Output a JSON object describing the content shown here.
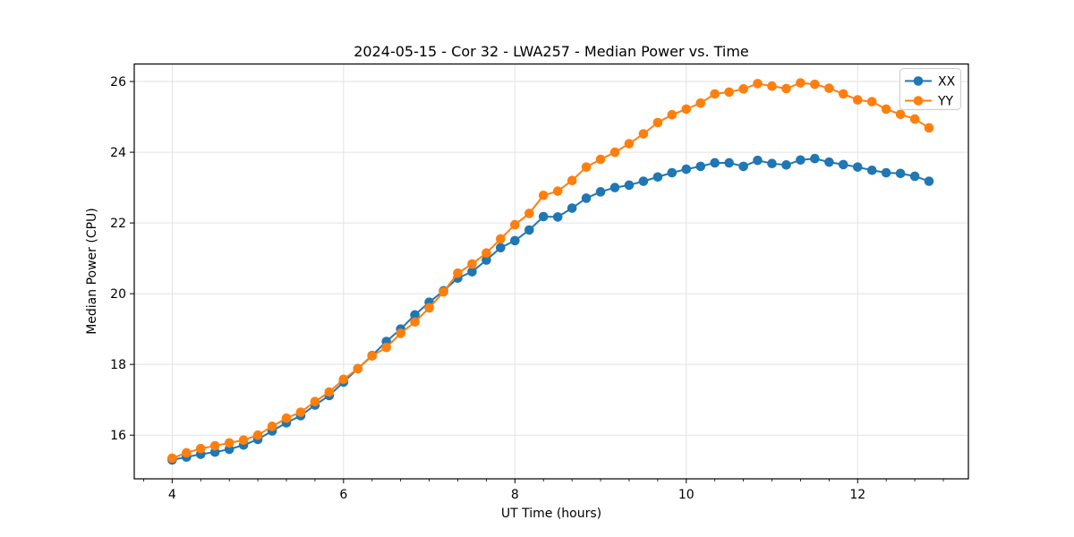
{
  "figure": {
    "background": "#ffffff"
  },
  "chart_data": {
    "type": "line",
    "title": "2024-05-15 - Cor 32 - LWA257 - Median Power vs. Time",
    "xlabel": "UT Time (hours)",
    "ylabel": "Median Power (CPU)",
    "xlim": [
      3.5575,
      13.2925
    ],
    "ylim": [
      14.765,
      26.495
    ],
    "x_major_ticks": [
      4,
      6,
      8,
      10,
      12
    ],
    "y_major_ticks": [
      16,
      18,
      20,
      22,
      24,
      26
    ],
    "x_minor_tick_step": 0.3333,
    "grid": true,
    "grid_color": "#e2e2e2",
    "spine_color": "#000000",
    "legend_position": "upper right",
    "marker": "circle",
    "marker_size": 5.3,
    "line_width": 2,
    "x": [
      4.0,
      4.167,
      4.333,
      4.5,
      4.667,
      4.833,
      5.0,
      5.167,
      5.333,
      5.5,
      5.667,
      5.833,
      6.0,
      6.167,
      6.333,
      6.5,
      6.667,
      6.833,
      7.0,
      7.167,
      7.333,
      7.5,
      7.667,
      7.833,
      8.0,
      8.167,
      8.333,
      8.5,
      8.667,
      8.833,
      9.0,
      9.167,
      9.333,
      9.5,
      9.667,
      9.833,
      10.0,
      10.167,
      10.333,
      10.5,
      10.667,
      10.833,
      11.0,
      11.167,
      11.333,
      11.5,
      11.667,
      11.833,
      12.0,
      12.167,
      12.333,
      12.5,
      12.667,
      12.833
    ],
    "series": [
      {
        "name": "XX",
        "color": "#1f77b4",
        "values": [
          15.3,
          15.38,
          15.46,
          15.52,
          15.6,
          15.72,
          15.88,
          16.12,
          16.35,
          16.55,
          16.85,
          17.12,
          17.5,
          17.88,
          18.25,
          18.65,
          19.0,
          19.4,
          19.76,
          20.08,
          20.44,
          20.62,
          20.95,
          21.3,
          21.5,
          21.8,
          22.18,
          22.17,
          22.42,
          22.7,
          22.88,
          23.0,
          23.07,
          23.18,
          23.3,
          23.42,
          23.52,
          23.6,
          23.7,
          23.7,
          23.6,
          23.77,
          23.68,
          23.64,
          23.78,
          23.82,
          23.72,
          23.65,
          23.58,
          23.49,
          23.42,
          23.4,
          23.32,
          23.18
        ]
      },
      {
        "name": "YY",
        "color": "#ff7f0e",
        "values": [
          15.35,
          15.5,
          15.62,
          15.7,
          15.78,
          15.86,
          16.0,
          16.25,
          16.48,
          16.65,
          16.95,
          17.22,
          17.58,
          17.88,
          18.24,
          18.48,
          18.88,
          19.2,
          19.6,
          20.05,
          20.58,
          20.84,
          21.15,
          21.55,
          21.95,
          22.27,
          22.78,
          22.9,
          23.2,
          23.58,
          23.8,
          24.0,
          24.24,
          24.52,
          24.84,
          25.06,
          25.22,
          25.39,
          25.65,
          25.7,
          25.79,
          25.94,
          25.87,
          25.8,
          25.96,
          25.92,
          25.81,
          25.65,
          25.48,
          25.43,
          25.22,
          25.07,
          24.94,
          24.69
        ]
      }
    ]
  },
  "legend": {
    "items": [
      {
        "label": "XX"
      },
      {
        "label": "YY"
      }
    ]
  }
}
